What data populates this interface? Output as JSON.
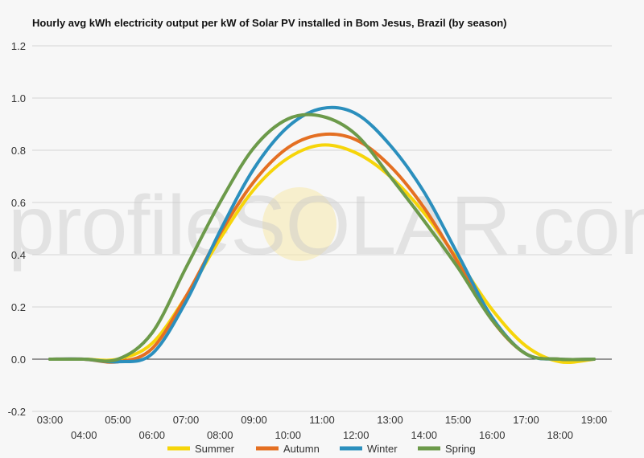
{
  "chart_data": {
    "type": "line",
    "title": "Hourly avg kWh electricity output per kW of Solar PV installed in Bom Jesus, Brazil (by season)",
    "xlabel": "",
    "ylabel": "",
    "ylim": [
      -0.2,
      1.2
    ],
    "y_ticks": [
      "-0.2",
      "0.0",
      "0.2",
      "0.4",
      "0.6",
      "0.8",
      "1.0",
      "1.2"
    ],
    "x_ticks_row1": [
      "03:00",
      "05:00",
      "07:00",
      "09:00",
      "11:00",
      "13:00",
      "15:00",
      "17:00",
      "19:00"
    ],
    "x_ticks_row2": [
      "04:00",
      "06:00",
      "08:00",
      "10:00",
      "12:00",
      "14:00",
      "16:00",
      "18:00"
    ],
    "categories": [
      "03:00",
      "04:00",
      "05:00",
      "06:00",
      "07:00",
      "08:00",
      "09:00",
      "10:00",
      "11:00",
      "12:00",
      "13:00",
      "14:00",
      "15:00",
      "16:00",
      "17:00",
      "18:00",
      "19:00"
    ],
    "grid": true,
    "legend_position": "bottom",
    "series": [
      {
        "name": "Summer",
        "color": "#f6d50a",
        "values": [
          0.0,
          0.0,
          0.0,
          0.06,
          0.24,
          0.46,
          0.65,
          0.77,
          0.82,
          0.79,
          0.7,
          0.56,
          0.38,
          0.19,
          0.05,
          -0.01,
          0.0
        ]
      },
      {
        "name": "Autumn",
        "color": "#e46f22",
        "values": [
          0.0,
          0.0,
          -0.01,
          0.04,
          0.24,
          0.48,
          0.68,
          0.81,
          0.86,
          0.84,
          0.74,
          0.58,
          0.37,
          0.15,
          0.02,
          0.0,
          0.0
        ]
      },
      {
        "name": "Winter",
        "color": "#2b8fbd",
        "values": [
          0.0,
          0.0,
          -0.01,
          0.02,
          0.22,
          0.49,
          0.73,
          0.89,
          0.96,
          0.94,
          0.82,
          0.64,
          0.4,
          0.16,
          0.02,
          0.0,
          0.0
        ]
      },
      {
        "name": "Spring",
        "color": "#6c9a4a",
        "values": [
          0.0,
          0.0,
          0.0,
          0.1,
          0.35,
          0.6,
          0.81,
          0.92,
          0.93,
          0.86,
          0.7,
          0.53,
          0.35,
          0.15,
          0.02,
          0.0,
          0.0
        ]
      }
    ]
  },
  "watermark": "profileSOLAR.com"
}
